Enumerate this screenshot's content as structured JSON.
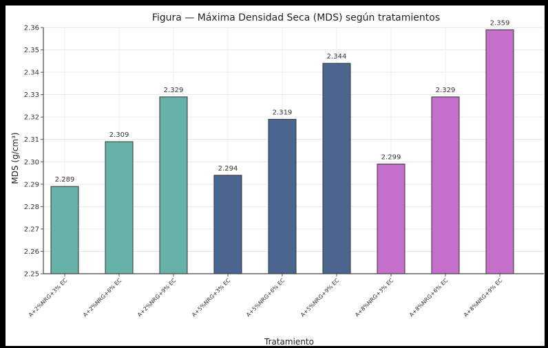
{
  "chart_data": {
    "type": "bar",
    "title": "Figura — Máxima Densidad Seca (MDS) según tratamientos",
    "xlabel": "Tratamiento",
    "ylabel": "MDS (g/cm³)",
    "ylim": [
      2.25,
      2.36
    ],
    "yticks": [
      "2.25",
      "2.26",
      "2.27",
      "2.28",
      "2.29",
      "2.30",
      "2.31",
      "2.32",
      "2.33",
      "2.34",
      "2.35",
      "2.36"
    ],
    "grid": true,
    "categories": [
      "A+2%NRG+3% EC",
      "A+2%NRG+6% EC",
      "A+2%NRG+9% EC",
      "A+5%NRG+3% EC",
      "A+5%NRG+6% EC",
      "A+5%NRG+9% EC",
      "A+8%NRG+3% EC",
      "A+8%NRG+6% EC",
      "A+8%NRG+9% EC"
    ],
    "values": [
      2.289,
      2.309,
      2.329,
      2.294,
      2.319,
      2.344,
      2.299,
      2.329,
      2.359
    ],
    "data_labels": [
      "2.289",
      "2.309",
      "2.329",
      "2.294",
      "2.319",
      "2.344",
      "2.299",
      "2.329",
      "2.359"
    ],
    "bar_colors": [
      "#66b2a8",
      "#66b2a8",
      "#66b2a8",
      "#4a6690",
      "#4a6690",
      "#4a6690",
      "#c46fc9",
      "#c46fc9",
      "#c46fc9"
    ]
  }
}
